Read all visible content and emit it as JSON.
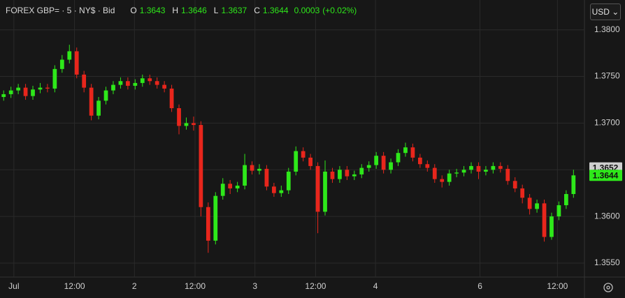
{
  "chart_data": {
    "type": "candlestick",
    "title": "FOREX GBP= · 5 · NY$ · Bid",
    "ohlc_legend": {
      "o_key": "O",
      "o": "1.3643",
      "h_key": "H",
      "h": "1.3646",
      "l_key": "L",
      "l": "1.3637",
      "c_key": "C",
      "c": "1.3644",
      "change": "0.0003",
      "change_pct": "(+0.02%)"
    },
    "currency": "USD",
    "up_color": "#2ee81a",
    "down_color": "#e8261c",
    "open": [
      1.3728,
      1.3731,
      1.3735,
      1.3738,
      1.3729,
      1.3736,
      1.3738,
      1.3737,
      1.3758,
      1.3768,
      1.3777,
      1.3752,
      1.3738,
      1.3708,
      1.3724,
      1.3735,
      1.3741,
      1.3745,
      1.374,
      1.3743,
      1.3748,
      1.3745,
      1.3741,
      1.3737,
      1.3716,
      1.3697,
      1.37,
      1.3698,
      1.361,
      1.3574,
      1.3622,
      1.3635,
      1.363,
      1.3633,
      1.3655,
      1.3649,
      1.3651,
      1.3632,
      1.3625,
      1.3628,
      1.3648,
      1.367,
      1.3663,
      1.3654,
      1.3605,
      1.3648,
      1.364,
      1.365,
      1.3643,
      1.3645,
      1.3652,
      1.3655,
      1.3665,
      1.365,
      1.3658,
      1.3668,
      1.3674,
      1.3663,
      1.3656,
      1.3652,
      1.364,
      1.3637,
      1.3646,
      1.3647,
      1.365,
      1.3654,
      1.3648,
      1.365,
      1.3654,
      1.3651,
      1.3638,
      1.363,
      1.362,
      1.3608,
      1.3614,
      1.3578,
      1.36,
      1.3612,
      1.3624
    ],
    "high": [
      1.3735,
      1.3739,
      1.3742,
      1.3742,
      1.374,
      1.3743,
      1.3742,
      1.3762,
      1.3773,
      1.3784,
      1.3781,
      1.3756,
      1.3742,
      1.3728,
      1.3739,
      1.3745,
      1.3749,
      1.3749,
      1.3747,
      1.3752,
      1.3752,
      1.3749,
      1.3745,
      1.3741,
      1.372,
      1.3706,
      1.3707,
      1.3702,
      1.3615,
      1.3626,
      1.3641,
      1.3639,
      1.3637,
      1.3667,
      1.3659,
      1.3656,
      1.3655,
      1.3636,
      1.3633,
      1.3652,
      1.3675,
      1.3674,
      1.3667,
      1.3658,
      1.366,
      1.3652,
      1.3654,
      1.3654,
      1.3649,
      1.3656,
      1.3659,
      1.3669,
      1.3669,
      1.3662,
      1.3672,
      1.3679,
      1.3678,
      1.3667,
      1.366,
      1.3656,
      1.3644,
      1.365,
      1.3651,
      1.3654,
      1.3658,
      1.3658,
      1.3654,
      1.3658,
      1.3658,
      1.3655,
      1.3642,
      1.3634,
      1.3624,
      1.3618,
      1.3618,
      1.3604,
      1.3616,
      1.3628,
      1.365
    ],
    "low": [
      1.3724,
      1.3727,
      1.3731,
      1.3725,
      1.3725,
      1.3732,
      1.3733,
      1.3733,
      1.3754,
      1.3764,
      1.3748,
      1.3733,
      1.3703,
      1.3704,
      1.372,
      1.3731,
      1.3737,
      1.3736,
      1.3736,
      1.3739,
      1.3741,
      1.3737,
      1.3733,
      1.3712,
      1.3688,
      1.3693,
      1.3692,
      1.36,
      1.3561,
      1.357,
      1.3618,
      1.3624,
      1.3626,
      1.3629,
      1.3645,
      1.3645,
      1.3628,
      1.3621,
      1.3621,
      1.3624,
      1.3644,
      1.3659,
      1.365,
      1.3582,
      1.3601,
      1.3636,
      1.3636,
      1.3639,
      1.3639,
      1.3641,
      1.3648,
      1.3651,
      1.3646,
      1.3646,
      1.3654,
      1.3664,
      1.3659,
      1.3652,
      1.3648,
      1.3636,
      1.3631,
      1.3633,
      1.3642,
      1.3643,
      1.3646,
      1.364,
      1.3644,
      1.3646,
      1.3647,
      1.3634,
      1.3626,
      1.3614,
      1.3602,
      1.3604,
      1.3573,
      1.3575,
      1.3596,
      1.3608,
      1.362
    ],
    "close": [
      1.3731,
      1.3735,
      1.3738,
      1.3729,
      1.3736,
      1.3738,
      1.3737,
      1.3758,
      1.3768,
      1.3777,
      1.3752,
      1.3738,
      1.3708,
      1.3724,
      1.3735,
      1.3741,
      1.3745,
      1.374,
      1.3743,
      1.3748,
      1.3745,
      1.3741,
      1.3737,
      1.3716,
      1.3697,
      1.37,
      1.3698,
      1.361,
      1.3574,
      1.3622,
      1.3635,
      1.363,
      1.3633,
      1.3655,
      1.3649,
      1.3651,
      1.3632,
      1.3625,
      1.3628,
      1.3648,
      1.367,
      1.3663,
      1.3654,
      1.3605,
      1.3648,
      1.364,
      1.365,
      1.3643,
      1.3645,
      1.3652,
      1.3655,
      1.3665,
      1.365,
      1.3658,
      1.3668,
      1.3674,
      1.3663,
      1.3656,
      1.3652,
      1.364,
      1.3637,
      1.3646,
      1.3647,
      1.365,
      1.3654,
      1.3648,
      1.365,
      1.3654,
      1.3651,
      1.3638,
      1.363,
      1.362,
      1.3608,
      1.3614,
      1.3578,
      1.36,
      1.3612,
      1.3624,
      1.3644
    ],
    "xlim": [
      0,
      80
    ],
    "xticks": [
      {
        "value": 1.9,
        "label": "Jul"
      },
      {
        "value": 10.2,
        "label": "12:00"
      },
      {
        "value": 18.4,
        "label": "2"
      },
      {
        "value": 26.7,
        "label": "12:00"
      },
      {
        "value": 34.9,
        "label": "3"
      },
      {
        "value": 43.2,
        "label": "12:00"
      },
      {
        "value": 51.4,
        "label": "4"
      },
      {
        "value": 65.7,
        "label": "6"
      },
      {
        "value": 76.3,
        "label": "12:00"
      }
    ],
    "ylim": [
      1.3535,
      1.3811
    ],
    "yticks": [
      {
        "value": 1.355,
        "label": "1.3550"
      },
      {
        "value": 1.36,
        "label": "1.3600"
      },
      {
        "value": 1.365,
        "label": "1.3650"
      },
      {
        "value": 1.37,
        "label": "1.3700"
      },
      {
        "value": 1.375,
        "label": "1.3750"
      },
      {
        "value": 1.38,
        "label": "1.3800"
      }
    ],
    "previous_close": 1.3652,
    "previous_close_color": "#cfcfcf",
    "last_price": 1.3644,
    "last_price_color": "#2ee81a",
    "grid": true
  }
}
